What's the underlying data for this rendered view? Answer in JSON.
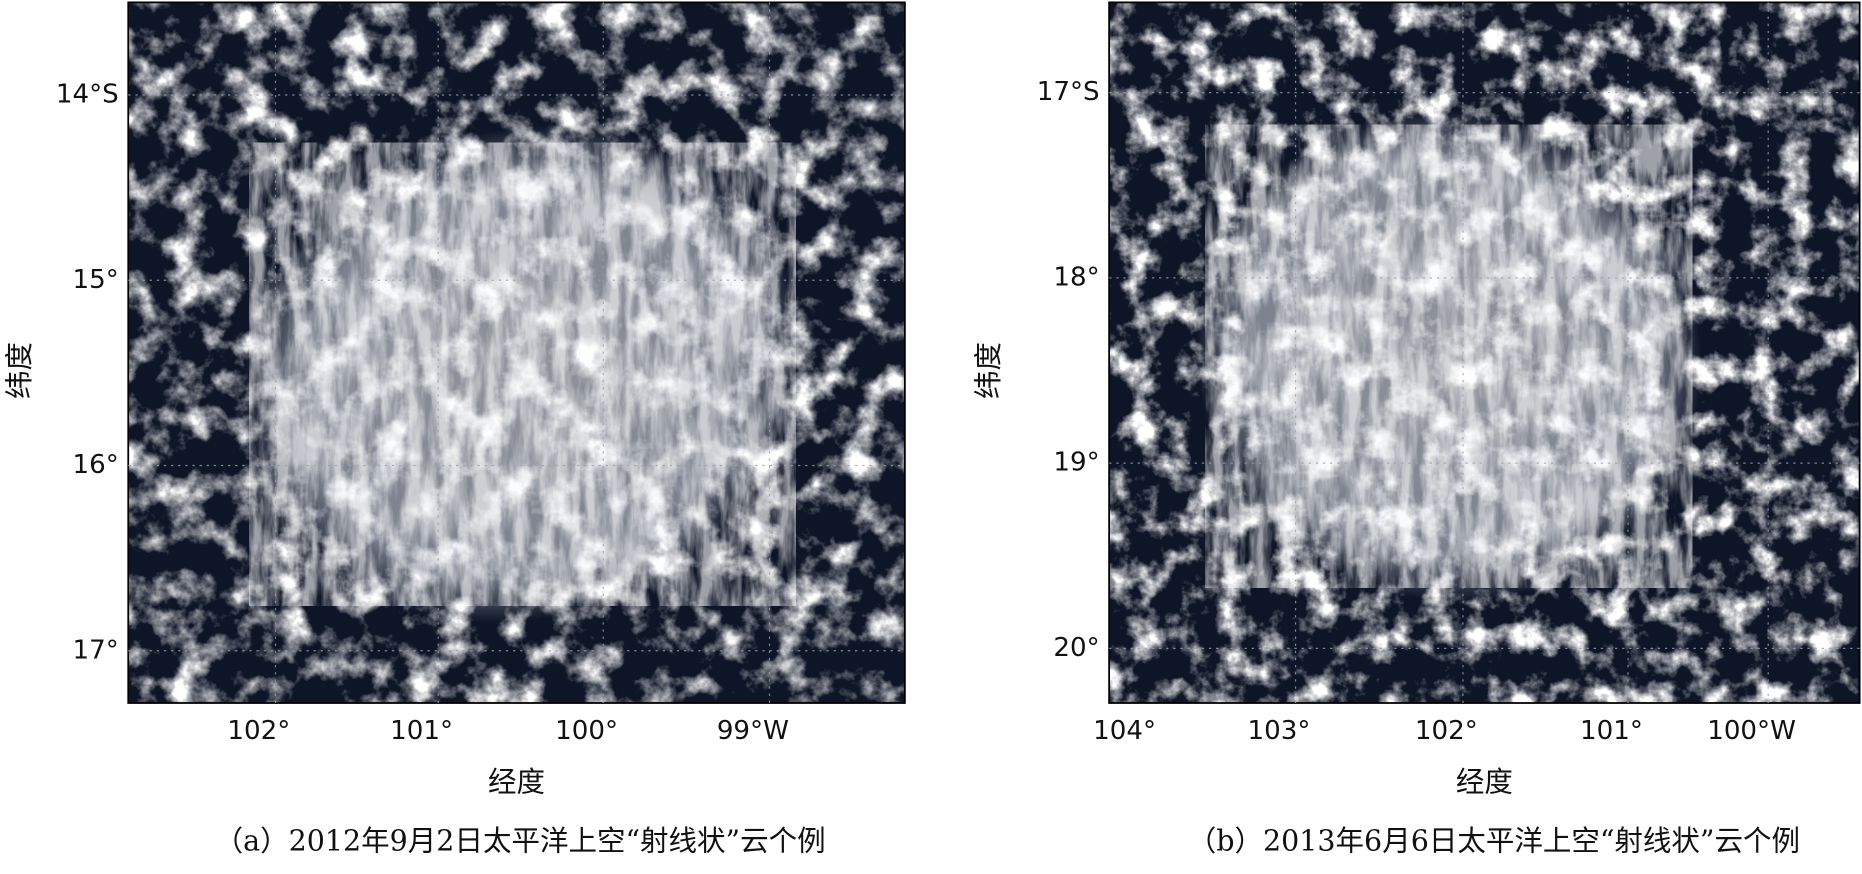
{
  "panels": [
    {
      "lat_ticks": [
        "14°S",
        "15°",
        "16°",
        "17°"
      ],
      "lon_ticks": [
        "102°",
        "101°",
        "100°",
        "99°W"
      ],
      "xlabel": "经度",
      "ylabel": "纬度",
      "caption": "（a）2012年9月2日太平洋上空“射线状”云个例"
    },
    {
      "lat_ticks": [
        "17°S",
        "18°",
        "19°",
        "20°"
      ],
      "lon_ticks": [
        "104°",
        "103°",
        "102°",
        "101°",
        "100°W"
      ],
      "xlabel": "经度",
      "ylabel": "纬度",
      "caption": "（b）2013年6月6日太平洋上空“射线状”云个例"
    }
  ]
}
